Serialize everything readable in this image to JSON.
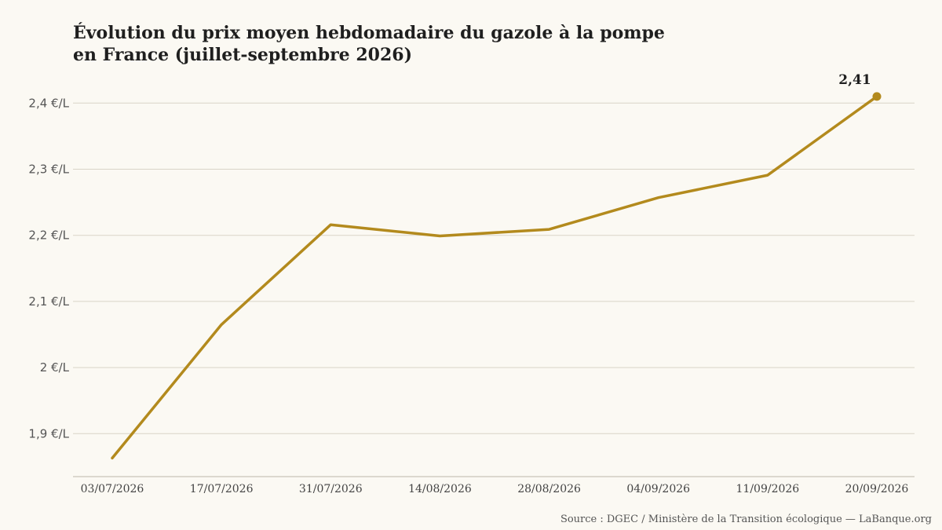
{
  "chart_data": {
    "type": "line",
    "title_lines": [
      "Évolution du prix moyen hebdomadaire du gazole à la pompe",
      "en France (juillet-septembre 2026)"
    ],
    "categories": [
      "03/07/2026",
      "17/07/2026",
      "31/07/2026",
      "14/08/2026",
      "28/08/2026",
      "04/09/2026",
      "11/09/2026",
      "20/09/2026"
    ],
    "values": [
      1.863,
      2.065,
      2.216,
      2.199,
      2.209,
      2.257,
      2.291,
      2.41
    ],
    "last_value_label": "2,41",
    "y_ticks": [
      1.9,
      2.0,
      2.1,
      2.2,
      2.3,
      2.4
    ],
    "y_tick_labels": [
      "1,9 €/L",
      "2 €/L",
      "2,1 €/L",
      "2,2 €/L",
      "2,3 €/L",
      "2,4 €/L"
    ],
    "ylim": [
      1.835,
      2.455
    ],
    "grid": true,
    "line_color": "#b38a1d",
    "source": "Source : DGEC / Ministère de la Transition écologique — LaBanque.org"
  }
}
